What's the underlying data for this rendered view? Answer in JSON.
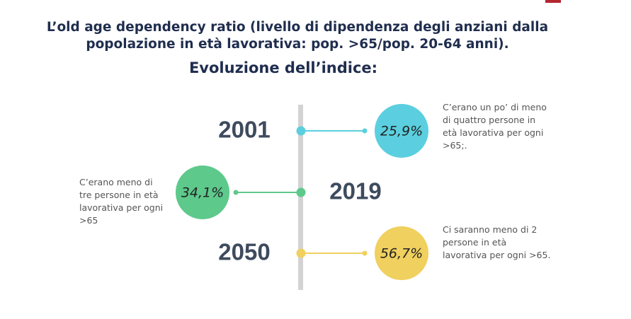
{
  "header": {
    "title_lines": [
      "L’old age dependency ratio (livello di dipendenza degli anziani dalla",
      "popolazione in età lavorativa: pop. >65/pop. 20-64 anni)."
    ],
    "subtitle": "Evoluzione dell’indice:"
  },
  "timeline": [
    {
      "year": "2001",
      "value": "25,9%",
      "color": "#5bcfdf",
      "side": "right",
      "description": [
        "C’erano un po’ di meno",
        "di quattro persone in",
        "età lavorativa per ogni",
        ">65;."
      ]
    },
    {
      "year": "2019",
      "value": "34,1%",
      "color": "#5dc98b",
      "side": "left",
      "description": [
        "C’erano meno di",
        "tre persone in età",
        "lavorativa per ogni",
        ">65"
      ]
    },
    {
      "year": "2050",
      "value": "56,7%",
      "color": "#f0d05e",
      "side": "right",
      "description": [
        "Ci saranno meno di 2",
        "persone in età",
        "lavorativa per ogni >65."
      ]
    }
  ]
}
